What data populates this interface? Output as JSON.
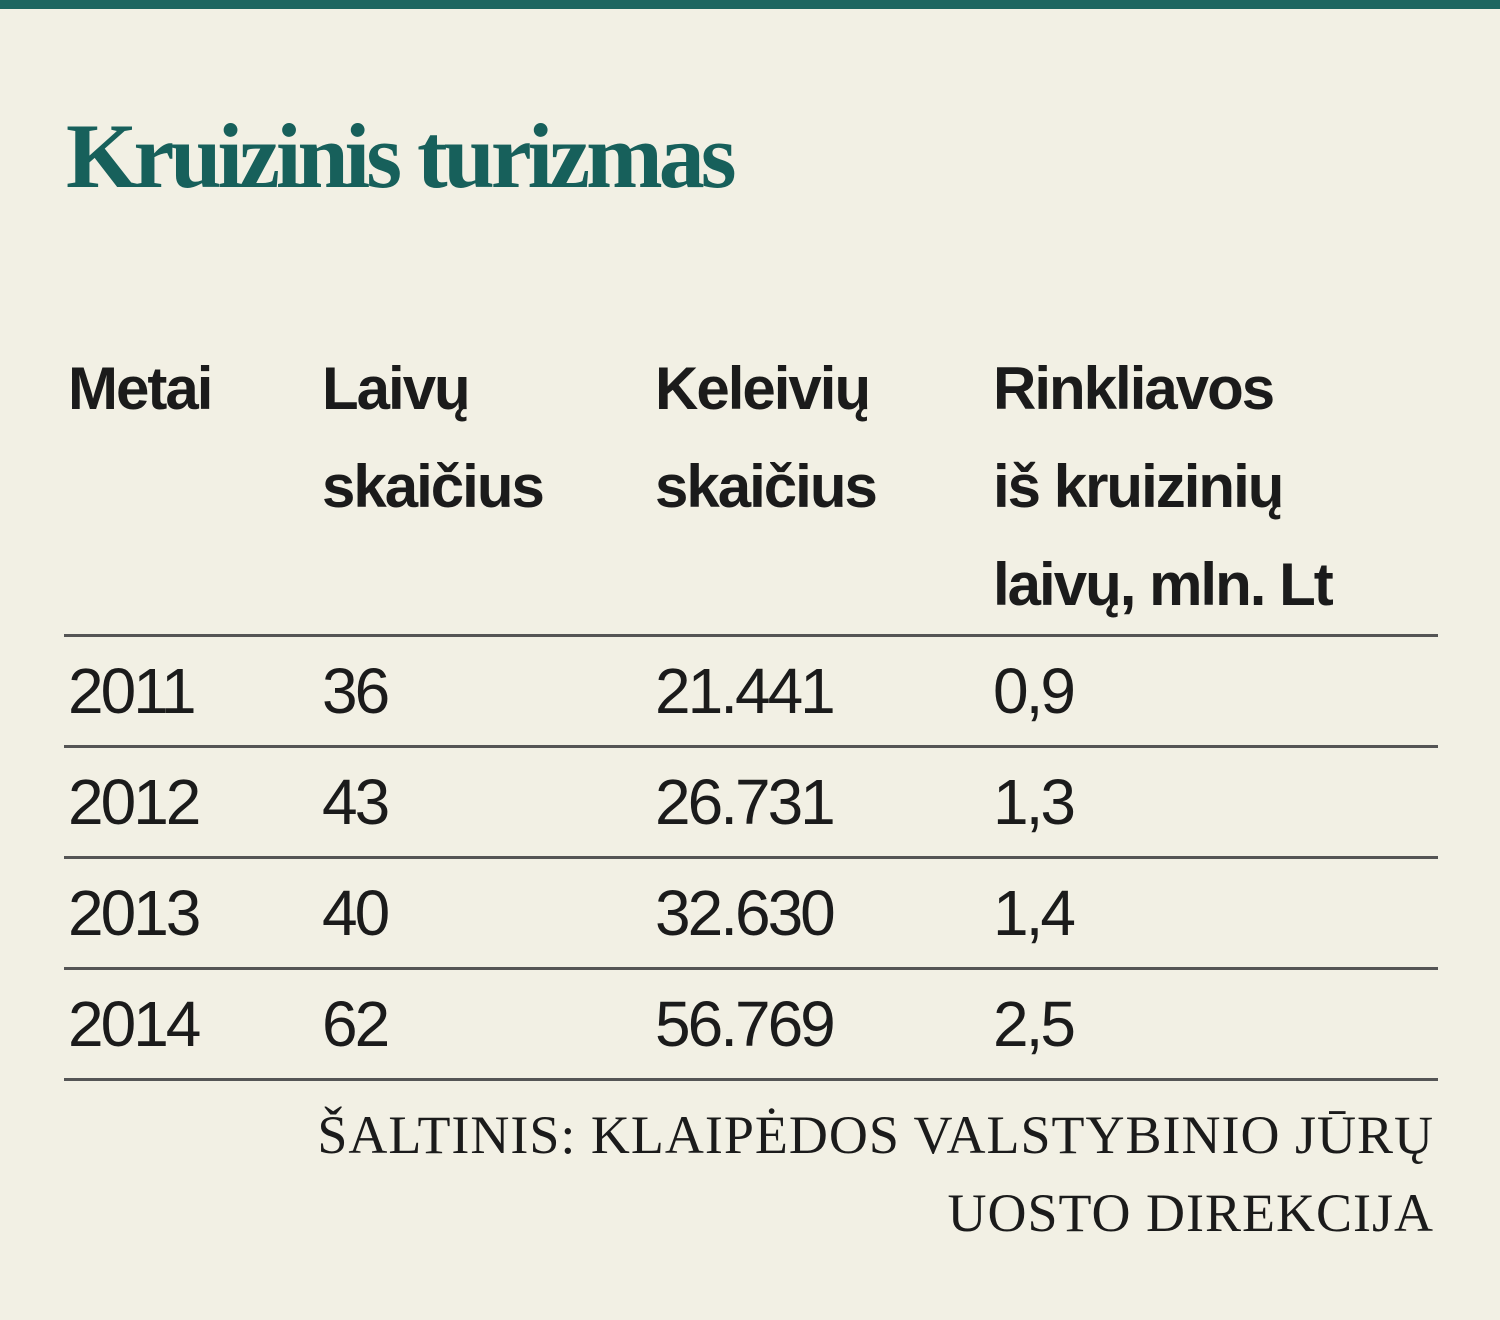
{
  "title": "Kruizinis turizmas",
  "table": {
    "headers": [
      [
        "Metai"
      ],
      [
        "Laivų",
        "skaičius"
      ],
      [
        "Keleivių",
        "skaičius"
      ],
      [
        "Rinkliavos",
        "iš kruizinių",
        "laivų, mln. Lt"
      ]
    ],
    "rows": [
      [
        "2011",
        "36",
        "21.441",
        "0,9"
      ],
      [
        "2012",
        "43",
        "26.731",
        "1,3"
      ],
      [
        "2013",
        "40",
        "32.630",
        "1,4"
      ],
      [
        "2014",
        "62",
        "56.769",
        "2,5"
      ]
    ]
  },
  "source": {
    "lines": [
      "ŠALTINIS: KLAIPĖDOS VALSTYBINIO JŪRŲ",
      "UOSTO DIREKCIJA"
    ]
  }
}
